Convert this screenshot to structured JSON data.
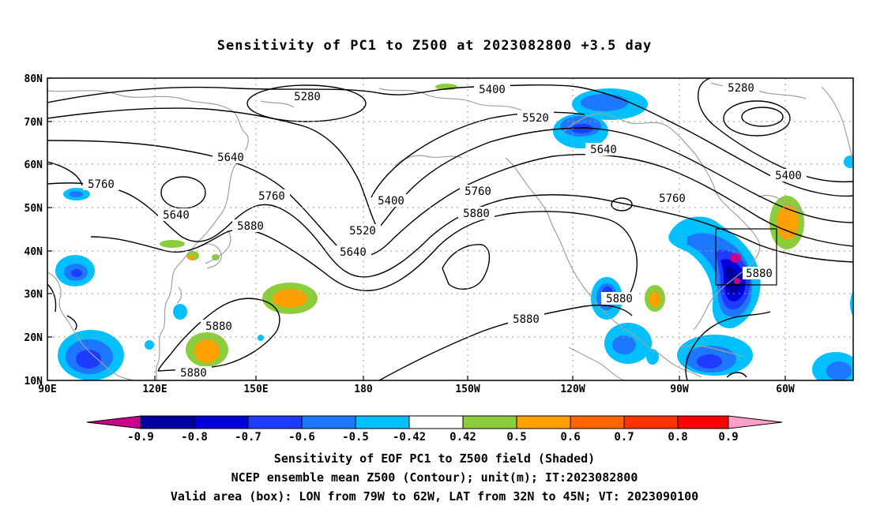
{
  "title": "Sensitivity of PC1 to Z500 at 2023082800 +3.5 day",
  "lat_labels": [
    "80N",
    "70N",
    "60N",
    "50N",
    "40N",
    "30N",
    "20N",
    "10N"
  ],
  "lon_labels": [
    "90E",
    "120E",
    "150E",
    "180",
    "150W",
    "120W",
    "90W",
    "60W"
  ],
  "contour_labels": [
    {
      "text": "5280"
    },
    {
      "text": "5280"
    },
    {
      "text": "5400"
    },
    {
      "text": "5400"
    },
    {
      "text": "5400"
    },
    {
      "text": "5520"
    },
    {
      "text": "5520"
    },
    {
      "text": "5640"
    },
    {
      "text": "5640"
    },
    {
      "text": "5640"
    },
    {
      "text": "5640"
    },
    {
      "text": "5760"
    },
    {
      "text": "5760"
    },
    {
      "text": "5760"
    },
    {
      "text": "5760"
    },
    {
      "text": "5880"
    },
    {
      "text": "5880"
    },
    {
      "text": "5880"
    },
    {
      "text": "5880"
    },
    {
      "text": "5880"
    },
    {
      "text": "5880"
    },
    {
      "text": "5880"
    }
  ],
  "colorbar": {
    "labels": [
      "-0.9",
      "-0.8",
      "-0.7",
      "-0.6",
      "-0.5",
      "-0.42",
      "0.42",
      "0.5",
      "0.6",
      "0.7",
      "0.8",
      "0.9"
    ],
    "colors": [
      "#c8008c",
      "#0000a0",
      "#0000dc",
      "#1e3cff",
      "#1e78ff",
      "#00c0ff",
      "#ffffff",
      "#8ccd3c",
      "#ffa000",
      "#ff6400",
      "#ff3200",
      "#ff0000",
      "#ffa0c8"
    ]
  },
  "validation_box": {
    "lon_west": "79W",
    "lon_east": "62W",
    "lat_south": "32N",
    "lat_north": "45N"
  },
  "footer": {
    "line1": "Sensitivity of EOF PC1 to Z500 field (Shaded)",
    "line2": "NCEP ensemble mean Z500 (Contour); unit(m); IT:2023082800",
    "line3": "Valid area (box): LON from 79W to 62W, LAT from 32N to 45N; VT: 2023090100"
  }
}
